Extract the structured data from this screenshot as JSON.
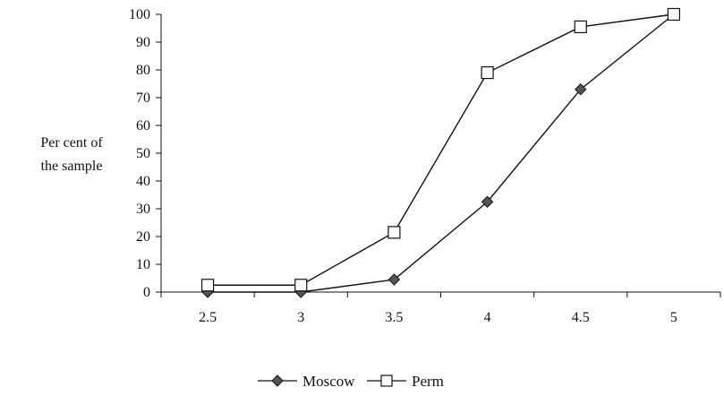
{
  "chart_data": {
    "type": "line",
    "title": "",
    "xlabel": "",
    "ylabel": [
      "Per cent of",
      "the sample"
    ],
    "categories": [
      "2.5",
      "3",
      "3.5",
      "4",
      "4.5",
      "5"
    ],
    "ylim": [
      0,
      100
    ],
    "yticks": [
      "0",
      "10",
      "20",
      "30",
      "40",
      "50",
      "60",
      "70",
      "80",
      "90",
      "100"
    ],
    "grid": false,
    "legend_position": "bottom",
    "series": [
      {
        "name": "Moscow",
        "marker": "diamond",
        "values": [
          0,
          0,
          4.5,
          32.5,
          73,
          100
        ]
      },
      {
        "name": "Perm",
        "marker": "square",
        "values": [
          2.5,
          2.5,
          21.5,
          79,
          95.5,
          100
        ]
      }
    ],
    "colors": {
      "line": "#111111",
      "diamond_fill": "#555555",
      "square_fill": "#ffffff"
    }
  }
}
